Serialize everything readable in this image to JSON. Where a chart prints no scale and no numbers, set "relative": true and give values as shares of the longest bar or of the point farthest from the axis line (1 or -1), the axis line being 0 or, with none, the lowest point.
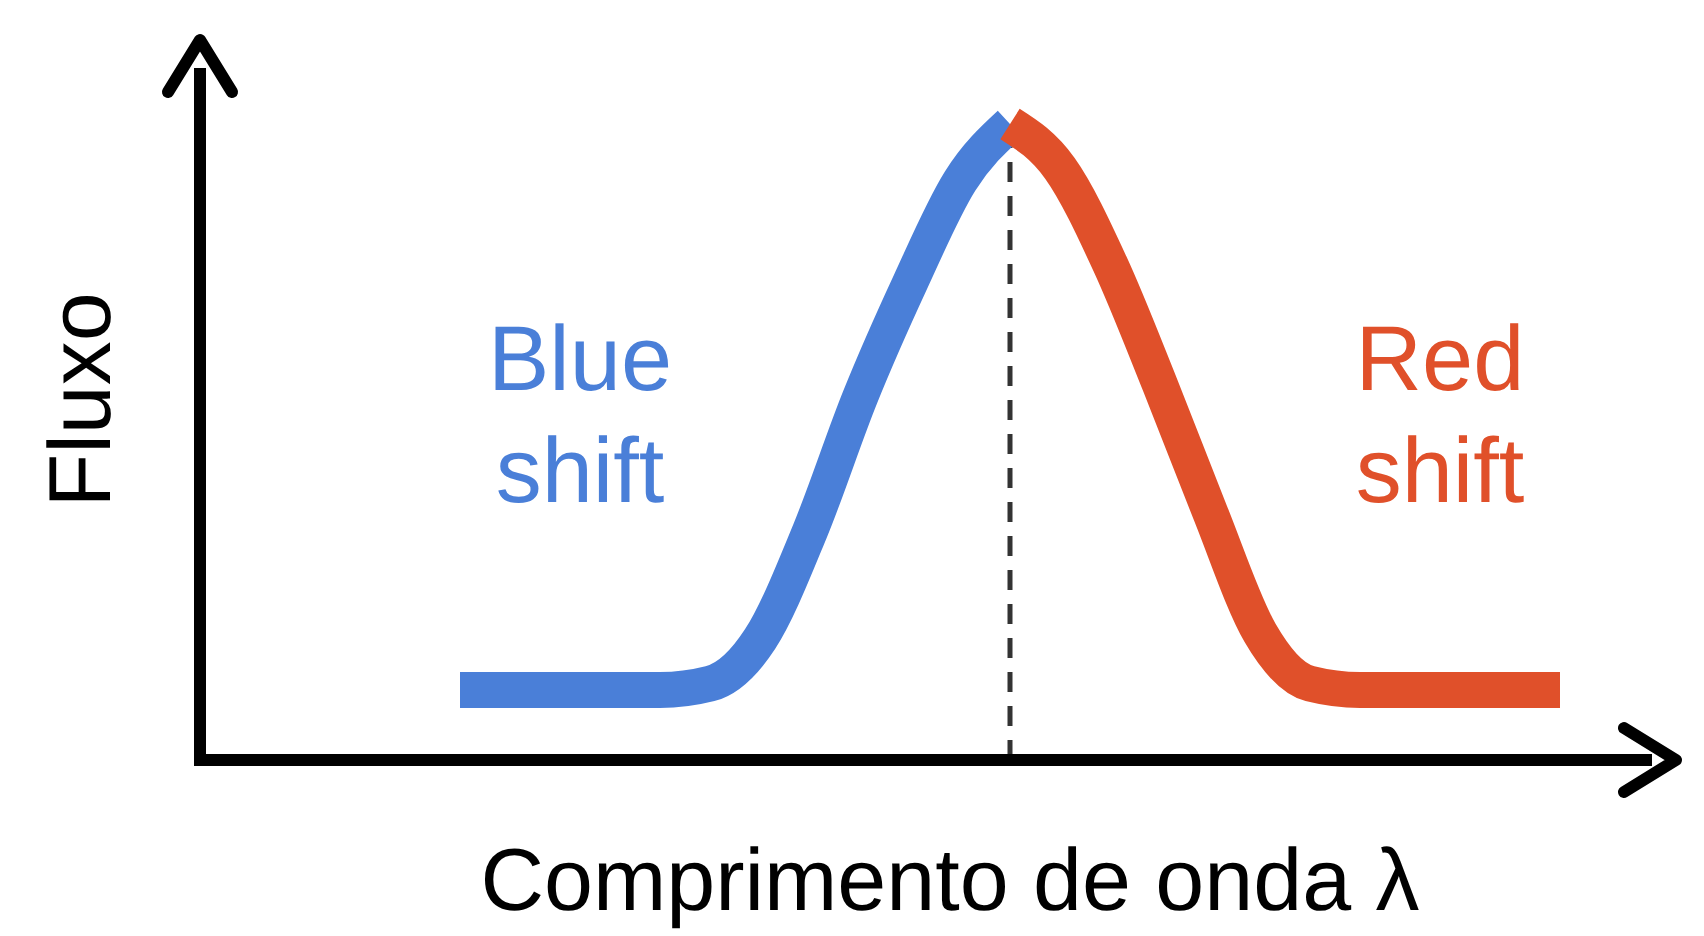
{
  "chart_data": {
    "type": "line",
    "relative": true,
    "xlabel": "Comprimento de onda λ",
    "ylabel": "Fluxo",
    "categories": [
      null,
      null,
      null,
      null,
      null,
      null,
      null,
      null,
      null,
      null,
      null,
      null,
      null,
      null,
      null,
      null,
      null,
      null,
      null,
      null,
      null,
      null,
      null
    ],
    "series": [
      {
        "color": "#4a7fd8",
        "values": [
          0.11,
          0.11,
          0.11,
          0.11,
          0.11,
          0.12,
          0.19,
          0.36,
          0.57,
          0.75,
          0.91,
          1,
          null,
          null,
          null,
          null,
          null,
          null,
          null,
          null,
          null,
          null,
          null
        ]
      },
      {
        "color": "#e0502a",
        "values": [
          null,
          null,
          null,
          null,
          null,
          null,
          null,
          null,
          null,
          null,
          null,
          1,
          0.93,
          0.78,
          0.59,
          0.39,
          0.2,
          0.12,
          0.11,
          0.11,
          0.11,
          0.11,
          0.11
        ]
      }
    ],
    "annotations": [
      "Blue shift",
      "Red shift"
    ],
    "line_style": "solid"
  }
}
